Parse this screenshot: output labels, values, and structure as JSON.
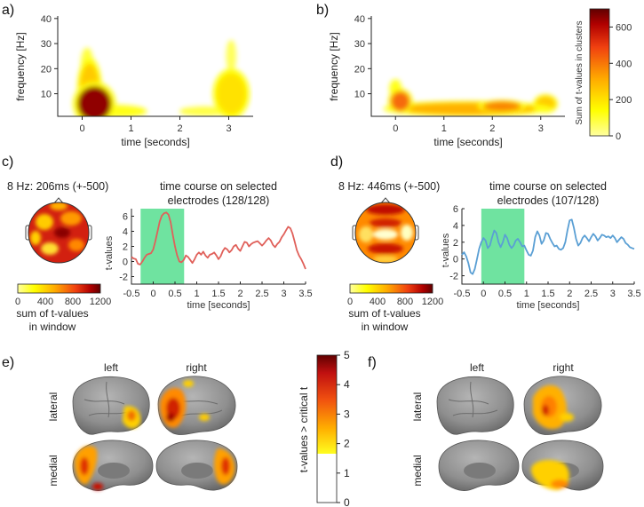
{
  "panels": {
    "a": "a)",
    "b": "b)",
    "c": "c)",
    "d": "d)",
    "e": "e)",
    "f": "f)"
  },
  "colors": {
    "hot_low": "#ffff00",
    "hot_mid": "#ff9900",
    "hot_high": "#e02000",
    "hot_max": "#6e0000",
    "line_c": "#e0605a",
    "line_d": "#5a9fd4",
    "window_fill": "#6fe3a0",
    "brain_gray": "#8c8c8c"
  },
  "chart_data": [
    {
      "id": "a",
      "type": "heatmap",
      "title": "",
      "xlabel": "time [seconds]",
      "ylabel": "frequency [Hz]",
      "xlim": [
        -0.5,
        3.5
      ],
      "ylim": [
        1,
        41
      ],
      "xticks": [
        0,
        1,
        2,
        3
      ],
      "yticks": [
        10,
        20,
        30,
        40
      ],
      "clusters": [
        {
          "t": 0.25,
          "f": 6,
          "dt": 0.35,
          "df": 7,
          "value": 650
        },
        {
          "t": 0.15,
          "f": 12,
          "dt": 0.2,
          "df": 10,
          "value": 250
        },
        {
          "t": 0.1,
          "f": 22,
          "dt": 0.1,
          "df": 5,
          "value": 80
        },
        {
          "t": 0.7,
          "f": 3,
          "dt": 0.5,
          "df": 2,
          "value": 120
        },
        {
          "t": 3.05,
          "f": 10,
          "dt": 0.3,
          "df": 8,
          "value": 200
        },
        {
          "t": 3.05,
          "f": 25,
          "dt": 0.08,
          "df": 5,
          "value": 60
        },
        {
          "t": 2.5,
          "f": 3,
          "dt": 0.4,
          "df": 1.5,
          "value": 80
        }
      ]
    },
    {
      "id": "b",
      "type": "heatmap",
      "title": "",
      "xlabel": "time [seconds]",
      "ylabel": "frequency [Hz]",
      "xlim": [
        -0.5,
        3.5
      ],
      "ylim": [
        1,
        41
      ],
      "xticks": [
        0,
        1,
        2,
        3
      ],
      "yticks": [
        10,
        20,
        30,
        40
      ],
      "colorbar": {
        "label": "Sum of t-values in clusters",
        "ticks": [
          0,
          200,
          400,
          600
        ],
        "range": [
          0,
          700
        ]
      },
      "clusters": [
        {
          "t": 0.1,
          "f": 7,
          "dt": 0.2,
          "df": 4,
          "value": 420
        },
        {
          "t": 0.0,
          "f": 12,
          "dt": 0.1,
          "df": 3,
          "value": 120
        },
        {
          "t": 1.5,
          "f": 4,
          "dt": 1.4,
          "df": 2.5,
          "value": 300
        },
        {
          "t": 2.2,
          "f": 5,
          "dt": 0.4,
          "df": 2,
          "value": 380
        },
        {
          "t": 3.1,
          "f": 6,
          "dt": 0.2,
          "df": 3,
          "value": 250
        }
      ]
    },
    {
      "id": "c",
      "type": "line",
      "title": "time course on selected",
      "title2": "electrodes (128/128)",
      "topo_title": "8 Hz: 206ms (+-500)",
      "topo_colorbar": {
        "label1": "sum of t-values",
        "label2": "in window",
        "ticks": [
          0,
          400,
          800,
          1200
        ]
      },
      "xlabel": "time [seconds]",
      "ylabel": "t-values",
      "xlim": [
        -0.5,
        3.5
      ],
      "ylim": [
        -3,
        7
      ],
      "xticks": [
        -0.5,
        0,
        0.5,
        1,
        1.5,
        2,
        2.5,
        3,
        3.5
      ],
      "yticks": [
        -2,
        0,
        2,
        4,
        6
      ],
      "window": [
        -0.29,
        0.71
      ],
      "x": [
        -0.5,
        -0.45,
        -0.4,
        -0.35,
        -0.3,
        -0.25,
        -0.2,
        -0.15,
        -0.1,
        -0.05,
        0,
        0.05,
        0.1,
        0.15,
        0.2,
        0.25,
        0.3,
        0.35,
        0.4,
        0.45,
        0.5,
        0.55,
        0.6,
        0.65,
        0.7,
        0.75,
        0.8,
        0.85,
        0.9,
        0.95,
        1,
        1.05,
        1.1,
        1.15,
        1.2,
        1.25,
        1.3,
        1.35,
        1.4,
        1.45,
        1.5,
        1.55,
        1.6,
        1.65,
        1.7,
        1.75,
        1.8,
        1.85,
        1.9,
        1.95,
        2,
        2.05,
        2.1,
        2.15,
        2.2,
        2.25,
        2.3,
        2.35,
        2.4,
        2.45,
        2.5,
        2.55,
        2.6,
        2.65,
        2.7,
        2.75,
        2.8,
        2.85,
        2.9,
        2.95,
        3,
        3.05,
        3.1,
        3.15,
        3.2,
        3.25,
        3.3,
        3.35,
        3.4,
        3.45,
        3.5
      ],
      "values": [
        0.6,
        0.4,
        0.3,
        -0.3,
        -0.4,
        0.0,
        0.5,
        0.9,
        1.0,
        1.1,
        1.6,
        2.7,
        4.0,
        5.3,
        6.1,
        6.4,
        6.5,
        6.2,
        5.2,
        3.5,
        2.0,
        0.8,
        0.0,
        -0.1,
        0.2,
        0.8,
        0.6,
        0.2,
        -0.2,
        0.3,
        0.9,
        1.2,
        0.9,
        1.3,
        0.8,
        0.5,
        0.9,
        1.0,
        1.2,
        0.8,
        0.3,
        0.7,
        1.4,
        1.8,
        1.6,
        1.2,
        1.5,
        2.0,
        2.2,
        1.7,
        1.4,
        2.0,
        2.6,
        2.5,
        2.0,
        2.3,
        2.5,
        2.6,
        2.7,
        2.4,
        2.1,
        2.4,
        2.8,
        3.1,
        2.8,
        2.2,
        1.9,
        2.3,
        2.6,
        3.2,
        3.6,
        4.1,
        4.6,
        4.4,
        3.7,
        2.6,
        1.5,
        0.8,
        0.3,
        -0.3,
        -1.0
      ]
    },
    {
      "id": "d",
      "type": "line",
      "title": "time course on selected",
      "title2": "electrodes (107/128)",
      "topo_title": "8 Hz: 446ms (+-500)",
      "topo_colorbar": {
        "label1": "sum of t-values",
        "label2": "in window",
        "ticks": [
          0,
          400,
          800,
          1200
        ]
      },
      "xlabel": "time [seconds]",
      "ylabel": "t-values",
      "xlim": [
        -0.5,
        3.5
      ],
      "ylim": [
        -3,
        6
      ],
      "xticks": [
        -0.5,
        0,
        0.5,
        1,
        1.5,
        2,
        2.5,
        3,
        3.5
      ],
      "yticks": [
        -2,
        0,
        2,
        4,
        6
      ],
      "window": [
        -0.05,
        0.95
      ],
      "x": [
        -0.5,
        -0.45,
        -0.4,
        -0.35,
        -0.3,
        -0.25,
        -0.2,
        -0.15,
        -0.1,
        -0.05,
        0,
        0.05,
        0.1,
        0.15,
        0.2,
        0.25,
        0.3,
        0.35,
        0.4,
        0.45,
        0.5,
        0.55,
        0.6,
        0.65,
        0.7,
        0.75,
        0.8,
        0.85,
        0.9,
        0.95,
        1,
        1.05,
        1.1,
        1.15,
        1.2,
        1.25,
        1.3,
        1.35,
        1.4,
        1.45,
        1.5,
        1.55,
        1.6,
        1.65,
        1.7,
        1.75,
        1.8,
        1.85,
        1.9,
        1.95,
        2,
        2.05,
        2.1,
        2.15,
        2.2,
        2.25,
        2.3,
        2.35,
        2.4,
        2.45,
        2.5,
        2.55,
        2.6,
        2.65,
        2.7,
        2.75,
        2.8,
        2.85,
        2.9,
        2.95,
        3,
        3.05,
        3.1,
        3.15,
        3.2,
        3.25,
        3.3,
        3.35,
        3.4,
        3.45,
        3.5
      ],
      "values": [
        0.5,
        0.8,
        0.3,
        -0.5,
        -1.6,
        -1.8,
        -1.2,
        0.0,
        1.2,
        2.0,
        2.5,
        2.2,
        1.3,
        1.6,
        2.6,
        3.4,
        3.1,
        2.0,
        1.4,
        2.0,
        2.9,
        2.5,
        1.7,
        1.3,
        1.6,
        2.2,
        2.4,
        2.0,
        1.5,
        1.6,
        1.0,
        0.5,
        0.4,
        1.0,
        2.6,
        3.3,
        2.8,
        1.8,
        2.2,
        3.1,
        3.0,
        2.4,
        1.9,
        1.5,
        1.6,
        1.2,
        1.1,
        1.3,
        2.0,
        3.4,
        4.6,
        4.7,
        3.7,
        2.4,
        1.6,
        1.9,
        2.5,
        2.8,
        2.5,
        2.1,
        2.6,
        3.0,
        2.7,
        2.2,
        2.5,
        2.9,
        2.8,
        2.6,
        2.7,
        2.5,
        2.8,
        2.5,
        2.0,
        2.3,
        2.6,
        2.4,
        1.9,
        1.7,
        1.4,
        1.3,
        1.2
      ]
    }
  ],
  "brain_panels": {
    "e": {
      "left_label": "left",
      "right_label": "right",
      "row1": "lateral",
      "row2": "medial"
    },
    "f": {
      "left_label": "left",
      "right_label": "right",
      "row1": "lateral",
      "row2": "medial"
    }
  },
  "brain_colorbar": {
    "label": "t-values > critical t",
    "ticks": [
      "0",
      "1",
      "2",
      "3",
      "4",
      "5"
    ],
    "range": [
      0,
      5
    ],
    "threshold": 1.65
  }
}
